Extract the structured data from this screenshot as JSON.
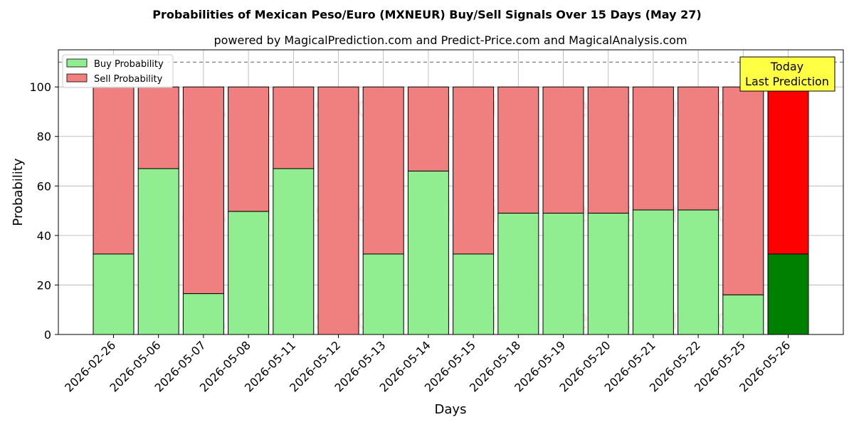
{
  "chart_data": {
    "type": "bar",
    "stacked": true,
    "title": "Probabilities of Mexican Peso/Euro (MXNEUR) Buy/Sell Signals Over 15 Days (May 27)",
    "subtitle": "powered by MagicalPrediction.com and Predict-Price.com and MagicalAnalysis.com",
    "xlabel": "Days",
    "ylabel": "Probability",
    "ylim": [
      0,
      115
    ],
    "yticks": [
      0,
      20,
      40,
      60,
      80,
      100
    ],
    "grid": true,
    "legend_position": "top-left",
    "reference_line": 110,
    "categories": [
      "2026-02-26",
      "2026-05-06",
      "2026-05-07",
      "2026-05-08",
      "2026-05-11",
      "2026-05-12",
      "2026-05-13",
      "2026-05-14",
      "2026-05-15",
      "2026-05-18",
      "2026-05-19",
      "2026-05-20",
      "2026-05-21",
      "2026-05-22",
      "2026-05-25",
      "2026-05-26"
    ],
    "series": [
      {
        "name": "Buy Probability",
        "values": [
          32.5,
          67,
          16.5,
          49.7,
          67,
          0,
          32.5,
          66,
          32.5,
          49,
          49,
          49,
          50.3,
          50.3,
          16,
          32.5
        ]
      },
      {
        "name": "Sell Probability",
        "values": [
          67.5,
          33,
          83.5,
          50.3,
          33,
          100,
          67.5,
          34,
          67.5,
          51,
          51,
          51,
          49.7,
          49.7,
          84,
          67.5
        ]
      }
    ],
    "annotation": {
      "line1": "Today",
      "line2": "Last Prediction"
    },
    "watermarks": [
      "MagicalAnalysis.com",
      "MagicalPrediction.com"
    ],
    "colors": {
      "buy": "#90ee90",
      "sell": "#f08080",
      "buy_highlight": "#008000",
      "sell_highlight": "#ff0000",
      "annotation_bg": "#ffff44",
      "grid": "#b0b0b0",
      "reference_line": "#808080"
    }
  }
}
